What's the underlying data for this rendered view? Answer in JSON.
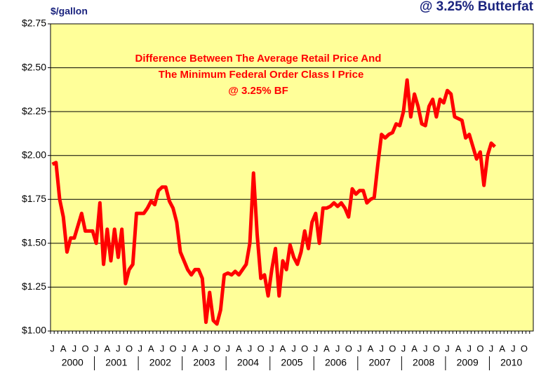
{
  "chart_data": {
    "type": "line",
    "title": "@ 3.25% Butterfat",
    "y_axis_label": "$/gallon",
    "annotation": [
      "Difference Between The Average Retail Price And",
      "The Minimum Federal Order Class I Price",
      "@ 3.25% BF"
    ],
    "years": [
      "2000",
      "2001",
      "2002",
      "2003",
      "2004",
      "2005",
      "2006",
      "2007",
      "2008",
      "2009",
      "2010"
    ],
    "categories": [
      "J",
      null,
      null,
      "A",
      null,
      null,
      "J",
      null,
      null,
      "O",
      null,
      null,
      "J",
      null,
      null,
      "A",
      null,
      null,
      "J",
      null,
      null,
      "O",
      null,
      null,
      "J",
      null,
      null,
      "A",
      null,
      null,
      "J",
      null,
      null,
      "O",
      null,
      null,
      "J",
      null,
      null,
      "A",
      null,
      null,
      "J",
      null,
      null,
      "O",
      null,
      null,
      "J",
      null,
      null,
      "A",
      null,
      null,
      "J",
      null,
      null,
      "O",
      null,
      null,
      "J",
      null,
      null,
      "A",
      null,
      null,
      "J",
      null,
      null,
      "O",
      null,
      null,
      "J",
      null,
      null,
      "A",
      null,
      null,
      "J",
      null,
      null,
      "O",
      null,
      null,
      "J",
      null,
      null,
      "A",
      null,
      null,
      "J",
      null,
      null,
      "O",
      null,
      null,
      "J",
      null,
      null,
      "A",
      null,
      null,
      "J",
      null,
      null,
      "O",
      null,
      null,
      "J",
      null,
      null,
      "A",
      null,
      null,
      "J",
      null,
      null,
      "O",
      null,
      null,
      "J",
      null,
      null,
      "A",
      null,
      null,
      "J",
      null,
      null,
      "O",
      null,
      null
    ],
    "series": [
      {
        "color": "#ff0000",
        "values": [
          1.95,
          1.96,
          1.75,
          1.65,
          1.45,
          1.53,
          1.53,
          1.6,
          1.67,
          1.57,
          1.57,
          1.57,
          1.5,
          1.73,
          1.38,
          1.58,
          1.4,
          1.58,
          1.42,
          1.58,
          1.27,
          1.35,
          1.38,
          1.67,
          1.67,
          1.67,
          1.7,
          1.74,
          1.72,
          1.8,
          1.82,
          1.82,
          1.74,
          1.7,
          1.62,
          1.45,
          1.4,
          1.35,
          1.32,
          1.35,
          1.35,
          1.3,
          1.05,
          1.22,
          1.06,
          1.04,
          1.12,
          1.32,
          1.33,
          1.32,
          1.34,
          1.32,
          1.35,
          1.38,
          1.5,
          1.9,
          1.55,
          1.3,
          1.32,
          1.2,
          1.35,
          1.47,
          1.2,
          1.4,
          1.35,
          1.49,
          1.42,
          1.38,
          1.45,
          1.57,
          1.47,
          1.62,
          1.67,
          1.5,
          1.7,
          1.7,
          1.71,
          1.73,
          1.71,
          1.73,
          1.7,
          1.65,
          1.81,
          1.78,
          1.8,
          1.8,
          1.73,
          1.75,
          1.76,
          1.95,
          2.12,
          2.1,
          2.12,
          2.13,
          2.18,
          2.17,
          2.25,
          2.43,
          2.22,
          2.35,
          2.28,
          2.18,
          2.17,
          2.28,
          2.32,
          2.22,
          2.32,
          2.3,
          2.37,
          2.35,
          2.22,
          2.21,
          2.2,
          2.1,
          2.12,
          2.05,
          1.98,
          2.02,
          1.83,
          2.0,
          2.07,
          2.05,
          null,
          null,
          null,
          null,
          null,
          null,
          null,
          null,
          null,
          null
        ]
      }
    ],
    "ylim": [
      1.0,
      2.75
    ],
    "yticks": [
      {
        "value": 1.0,
        "label": "$1.00"
      },
      {
        "value": 1.25,
        "label": "$1.25"
      },
      {
        "value": 1.5,
        "label": "$1.50"
      },
      {
        "value": 1.75,
        "label": "$1.75"
      },
      {
        "value": 2.0,
        "label": "$2.00"
      },
      {
        "value": 2.25,
        "label": "$2.25"
      },
      {
        "value": 2.5,
        "label": "$2.50"
      },
      {
        "value": 2.75,
        "label": "$2.75"
      }
    ],
    "grid": true
  }
}
